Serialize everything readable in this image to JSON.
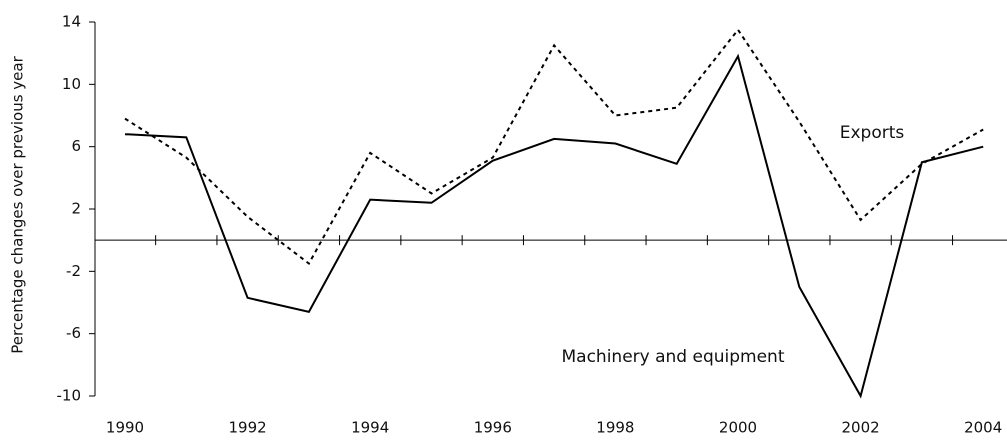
{
  "chart_data": {
    "type": "line",
    "y_label": "Percentage changes over previous year",
    "categories": [
      "1990",
      null,
      "1992",
      null,
      "1994",
      null,
      "1996",
      null,
      "1998",
      null,
      "2000",
      null,
      "2002",
      null,
      "2004"
    ],
    "series": [
      {
        "name": "Machinery and equipment",
        "color": "#000000",
        "dash": "solid",
        "values": [
          6.8,
          6.6,
          -3.7,
          -4.6,
          2.6,
          2.4,
          5.1,
          6.5,
          6.2,
          4.9,
          11.8,
          -3.0,
          -10,
          5.0,
          6.0
        ]
      },
      {
        "name": "Exports",
        "color": "#000000",
        "dash": "dotted",
        "values": [
          7.8,
          5.3,
          1.5,
          -1.5,
          5.6,
          3.0,
          5.3,
          12.5,
          8.0,
          8.5,
          13.5,
          7.6,
          1.3,
          4.9,
          7.1
        ]
      }
    ],
    "ylim": [
      -10,
      14
    ],
    "yticks": [
      -10,
      -6,
      -2,
      2,
      6,
      10,
      14
    ],
    "grid": false
  }
}
